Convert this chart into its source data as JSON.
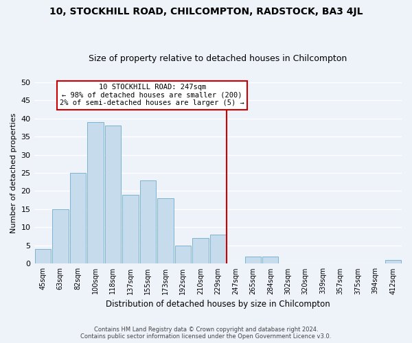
{
  "title": "10, STOCKHILL ROAD, CHILCOMPTON, RADSTOCK, BA3 4JL",
  "subtitle": "Size of property relative to detached houses in Chilcompton",
  "xlabel": "Distribution of detached houses by size in Chilcompton",
  "ylabel": "Number of detached properties",
  "footer_line1": "Contains HM Land Registry data © Crown copyright and database right 2024.",
  "footer_line2": "Contains public sector information licensed under the Open Government Licence v3.0.",
  "bar_labels": [
    "45sqm",
    "63sqm",
    "82sqm",
    "100sqm",
    "118sqm",
    "137sqm",
    "155sqm",
    "173sqm",
    "192sqm",
    "210sqm",
    "229sqm",
    "247sqm",
    "265sqm",
    "284sqm",
    "302sqm",
    "320sqm",
    "339sqm",
    "357sqm",
    "375sqm",
    "394sqm",
    "412sqm"
  ],
  "bar_values": [
    4,
    15,
    25,
    39,
    38,
    19,
    23,
    18,
    5,
    7,
    8,
    0,
    2,
    2,
    0,
    0,
    0,
    0,
    0,
    0,
    1
  ],
  "bar_color": "#c6dcec",
  "bar_edge_color": "#7ab3d0",
  "ref_line_x_label": "247sqm",
  "ref_line_color": "#cc0000",
  "annotation_title": "10 STOCKHILL ROAD: 247sqm",
  "annotation_line1": "← 98% of detached houses are smaller (200)",
  "annotation_line2": "2% of semi-detached houses are larger (5) →",
  "annotation_box_color": "white",
  "annotation_box_edge_color": "#cc0000",
  "ylim": [
    0,
    50
  ],
  "yticks": [
    0,
    5,
    10,
    15,
    20,
    25,
    30,
    35,
    40,
    45,
    50
  ],
  "background_color": "#eef2f9",
  "grid_color": "white",
  "title_fontsize": 10,
  "subtitle_fontsize": 9
}
